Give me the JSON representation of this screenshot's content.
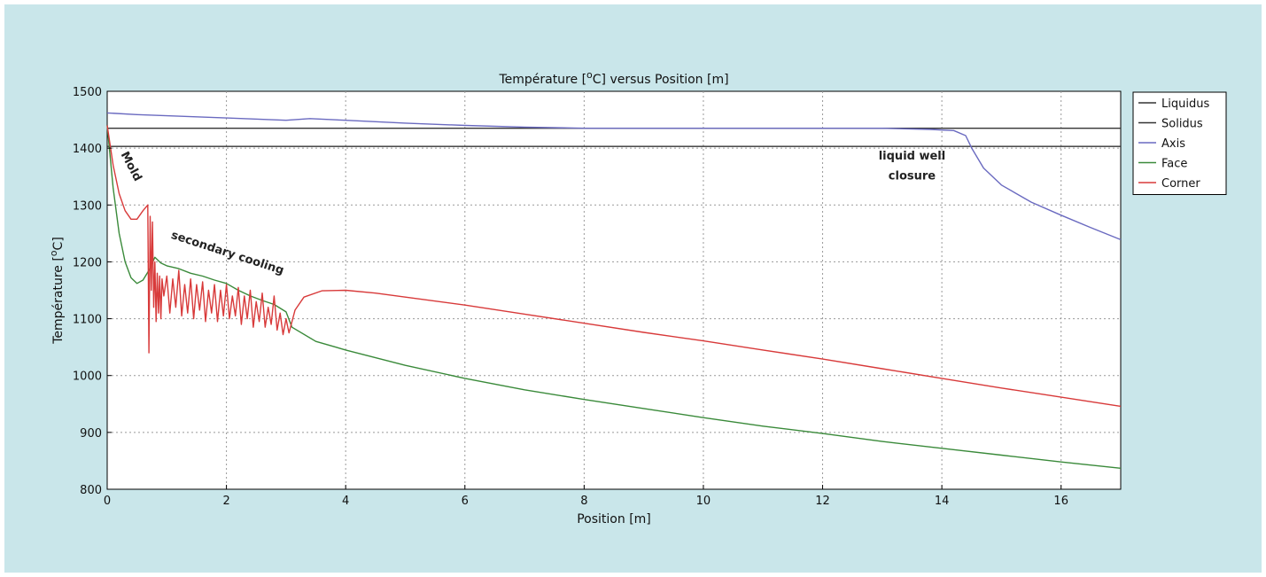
{
  "chart_data": {
    "type": "line",
    "title_prefix": "Température [",
    "title_sup": "o",
    "title_suffix": "C] versus Position [m]",
    "xlabel": "Position [m]",
    "ylabel_prefix": "Température [",
    "ylabel_sup": "o",
    "ylabel_suffix": "C]",
    "xlim": [
      0,
      17
    ],
    "ylim": [
      800,
      1500
    ],
    "xticks": [
      0,
      2,
      4,
      6,
      8,
      10,
      12,
      14,
      16
    ],
    "yticks": [
      800,
      900,
      1000,
      1100,
      1200,
      1300,
      1400,
      1500
    ],
    "grid": true,
    "legend_position": "right",
    "series": [
      {
        "name": "Liquidus",
        "color": "#333333",
        "x": [
          0,
          17
        ],
        "y": [
          1435,
          1435
        ]
      },
      {
        "name": "Solidus",
        "color": "#333333",
        "x": [
          0,
          17
        ],
        "y": [
          1403,
          1403
        ]
      },
      {
        "name": "Axis",
        "color": "#6a6ac0",
        "x": [
          0,
          0.5,
          1,
          2,
          3,
          3.4,
          4,
          5,
          6,
          7,
          8,
          9,
          10,
          11,
          12,
          13,
          13.8,
          14.2,
          14.4,
          14.5,
          14.7,
          15,
          15.5,
          16,
          16.5,
          17
        ],
        "y": [
          1462,
          1459,
          1457,
          1453,
          1449,
          1452,
          1449,
          1444,
          1440,
          1437,
          1435,
          1435,
          1435,
          1435,
          1435,
          1435,
          1433,
          1431,
          1422,
          1400,
          1365,
          1335,
          1305,
          1282,
          1260,
          1239
        ]
      },
      {
        "name": "Face",
        "color": "#3a8a3a",
        "x": [
          0,
          0.1,
          0.2,
          0.3,
          0.4,
          0.5,
          0.6,
          0.7,
          0.8,
          0.9,
          1.0,
          1.2,
          1.4,
          1.6,
          1.8,
          2.0,
          2.2,
          2.4,
          2.6,
          2.8,
          3.0,
          3.1,
          3.5,
          4,
          5,
          6,
          7,
          8,
          9,
          10,
          11,
          12,
          13,
          14,
          15,
          16,
          17
        ],
        "y": [
          1440,
          1330,
          1250,
          1200,
          1172,
          1162,
          1168,
          1185,
          1208,
          1198,
          1193,
          1188,
          1180,
          1175,
          1168,
          1162,
          1150,
          1140,
          1132,
          1125,
          1112,
          1085,
          1060,
          1045,
          1018,
          995,
          975,
          958,
          942,
          926,
          911,
          898,
          884,
          872,
          860,
          848,
          837
        ]
      },
      {
        "name": "Corner",
        "color": "#d83a3a",
        "x": [
          0,
          0.1,
          0.2,
          0.3,
          0.4,
          0.5,
          0.6,
          0.68,
          0.7,
          0.72,
          0.74,
          0.76,
          0.78,
          0.8,
          0.82,
          0.84,
          0.86,
          0.88,
          0.9,
          0.92,
          0.95,
          1.0,
          1.05,
          1.1,
          1.15,
          1.2,
          1.25,
          1.3,
          1.35,
          1.4,
          1.45,
          1.5,
          1.55,
          1.6,
          1.65,
          1.7,
          1.75,
          1.8,
          1.85,
          1.9,
          1.95,
          2.0,
          2.05,
          2.1,
          2.15,
          2.2,
          2.25,
          2.3,
          2.35,
          2.4,
          2.45,
          2.5,
          2.55,
          2.6,
          2.65,
          2.7,
          2.75,
          2.8,
          2.85,
          2.9,
          2.95,
          3.0,
          3.05,
          3.15,
          3.3,
          3.6,
          4.0,
          4.5,
          5,
          6,
          7,
          8,
          9,
          10,
          11,
          12,
          13,
          14,
          15,
          16,
          17
        ],
        "y": [
          1440,
          1370,
          1320,
          1290,
          1275,
          1275,
          1290,
          1300,
          1040,
          1280,
          1150,
          1270,
          1120,
          1200,
          1095,
          1180,
          1110,
          1175,
          1100,
          1170,
          1140,
          1175,
          1110,
          1170,
          1120,
          1185,
          1105,
          1160,
          1110,
          1170,
          1100,
          1160,
          1115,
          1165,
          1095,
          1150,
          1110,
          1160,
          1095,
          1150,
          1105,
          1160,
          1100,
          1140,
          1105,
          1155,
          1090,
          1140,
          1100,
          1150,
          1085,
          1130,
          1095,
          1145,
          1085,
          1120,
          1090,
          1140,
          1080,
          1110,
          1072,
          1100,
          1075,
          1115,
          1138,
          1149,
          1150,
          1145,
          1138,
          1124,
          1108,
          1092,
          1076,
          1061,
          1045,
          1029,
          1012,
          995,
          978,
          962,
          946
        ]
      }
    ],
    "annotations": [
      {
        "text": "Mold",
        "x": 0.35,
        "y": 1365,
        "rotate": 62
      },
      {
        "text": "secondary cooling",
        "x": 2.0,
        "y": 1210,
        "rotate": 18
      },
      {
        "text": "liquid well",
        "x": 13.5,
        "y": 1380,
        "rotate": 0
      },
      {
        "text": "closure",
        "x": 13.5,
        "y": 1345,
        "rotate": 0
      }
    ]
  }
}
